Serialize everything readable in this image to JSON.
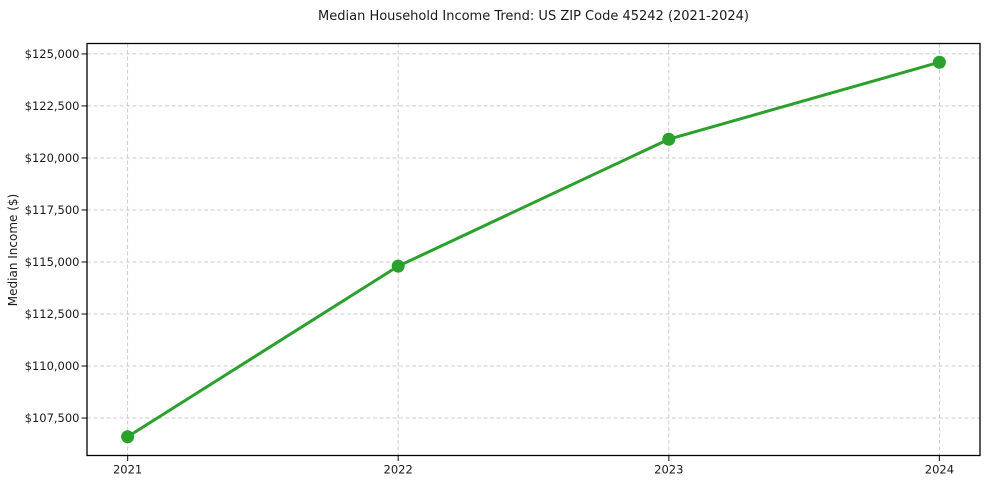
{
  "chart_data": {
    "type": "line",
    "title": "Median Household Income Trend: US ZIP Code 45242 (2021-2024)",
    "xlabel": "",
    "ylabel": "Median Income ($)",
    "x": [
      2021,
      2022,
      2023,
      2024
    ],
    "x_tick_labels": [
      "2021",
      "2022",
      "2023",
      "2024"
    ],
    "values": [
      106600,
      114800,
      120900,
      124600
    ],
    "y_ticks": [
      107500,
      110000,
      112500,
      115000,
      117500,
      120000,
      122500,
      125000
    ],
    "y_tick_labels": [
      "$107,500",
      "$110,000",
      "$112,500",
      "$115,000",
      "$117,500",
      "$120,000",
      "$122,500",
      "$125,000"
    ],
    "xlim": [
      2020.85,
      2024.15
    ],
    "ylim": [
      105700,
      125500
    ],
    "grid": true,
    "grid_style": "dashed",
    "legend": false,
    "marker": "circle",
    "colors": {
      "line": "#2ca02c",
      "marker": "#2ca02c",
      "grid": "#cccccc",
      "spine": "#000000",
      "tick": "#333333",
      "text": "#1a1a1a",
      "background": "#ffffff"
    }
  }
}
